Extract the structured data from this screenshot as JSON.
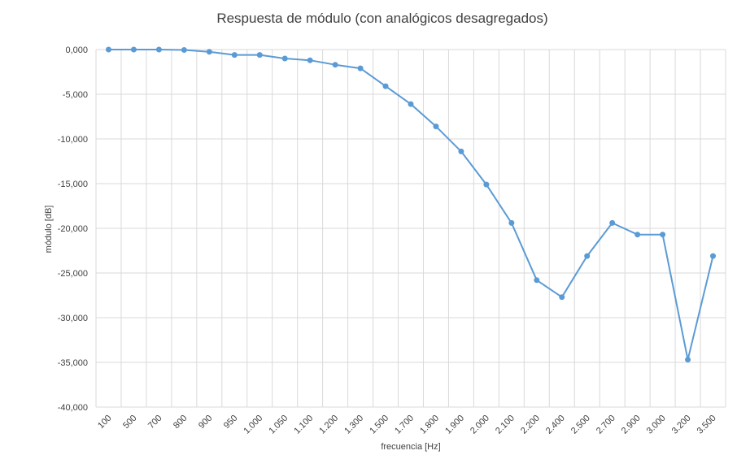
{
  "chart_data": {
    "type": "line",
    "title": "Respuesta de módulo (con analógicos desagregados)",
    "xlabel": "frecuencia [Hz]",
    "ylabel": "módulo [dB]",
    "ylim": [
      -40,
      0
    ],
    "yticks": [
      0,
      -5,
      -10,
      -15,
      -20,
      -25,
      -30,
      -35,
      -40
    ],
    "ytick_labels": [
      "0,000",
      "-5,000",
      "-10,000",
      "-15,000",
      "-20,000",
      "-25,000",
      "-30,000",
      "-35,000",
      "-40,000"
    ],
    "categories": [
      "100",
      "500",
      "700",
      "800",
      "900",
      "950",
      "1.000",
      "1.050",
      "1.100",
      "1.200",
      "1.300",
      "1.500",
      "1.700",
      "1.800",
      "1.900",
      "2.000",
      "2.100",
      "2.200",
      "2.400",
      "2.500",
      "2.700",
      "2.900",
      "3.000",
      "3.200",
      "3.500"
    ],
    "series": [
      {
        "values": [
          0.0,
          0.0,
          0.0,
          -0.05,
          -0.25,
          -0.6,
          -0.6,
          -1.0,
          -1.2,
          -1.7,
          -2.1,
          -4.1,
          -6.1,
          -8.6,
          -11.4,
          -15.1,
          -19.4,
          -25.8,
          -27.7,
          -23.1,
          -19.4,
          -20.7,
          -20.7,
          -34.7,
          -23.1
        ],
        "color": "#5b9bd5"
      }
    ],
    "grid": true,
    "legend": "none"
  }
}
